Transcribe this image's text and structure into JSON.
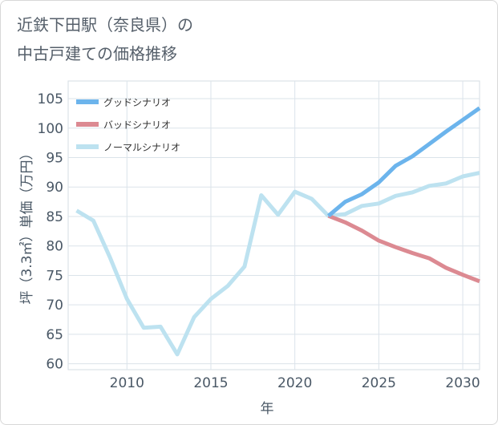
{
  "title": {
    "line1": "近鉄下田駅（奈良県）の",
    "line2": "中古戸建ての価格推移"
  },
  "chart_data": {
    "type": "line",
    "xlabel": "年",
    "ylabel": "坪（3.3㎡）単価（万円）",
    "xlim": [
      2006.5,
      2031
    ],
    "ylim": [
      59,
      108
    ],
    "xticks": [
      2010,
      2015,
      2020,
      2025,
      2030
    ],
    "yticks": [
      60,
      65,
      70,
      75,
      80,
      85,
      90,
      95,
      100,
      105
    ],
    "grid": true,
    "legend_position": "top-left",
    "series": [
      {
        "name": "グッドシナリオ",
        "color": "#6cb4ec",
        "x": [
          2022,
          2023,
          2024,
          2025,
          2026,
          2027,
          2028,
          2029,
          2030,
          2031
        ],
        "y": [
          85.1,
          87.5,
          88.8,
          90.8,
          93.6,
          95.2,
          97.3,
          99.4,
          101.4,
          103.4
        ]
      },
      {
        "name": "バッドシナリオ",
        "color": "#dc8a92",
        "x": [
          2022,
          2023,
          2024,
          2025,
          2026,
          2027,
          2028,
          2029,
          2030,
          2031
        ],
        "y": [
          85.1,
          84.0,
          82.6,
          80.9,
          79.8,
          78.8,
          77.9,
          76.3,
          75.1,
          74.0
        ]
      },
      {
        "name": "ノーマルシナリオ",
        "color": "#bde2f0",
        "x": [
          2007,
          2008,
          2009,
          2010,
          2011,
          2012,
          2013,
          2014,
          2015,
          2016,
          2017,
          2018,
          2019,
          2020,
          2021,
          2022,
          2023,
          2024,
          2025,
          2026,
          2027,
          2028,
          2029,
          2030,
          2031
        ],
        "y": [
          86.0,
          84.3,
          78.0,
          71.0,
          66.1,
          66.3,
          61.6,
          67.9,
          71.0,
          73.2,
          76.5,
          88.6,
          85.3,
          89.2,
          88.0,
          85.1,
          85.4,
          86.8,
          87.2,
          88.5,
          89.1,
          90.2,
          90.6,
          91.8,
          92.4
        ]
      }
    ]
  }
}
